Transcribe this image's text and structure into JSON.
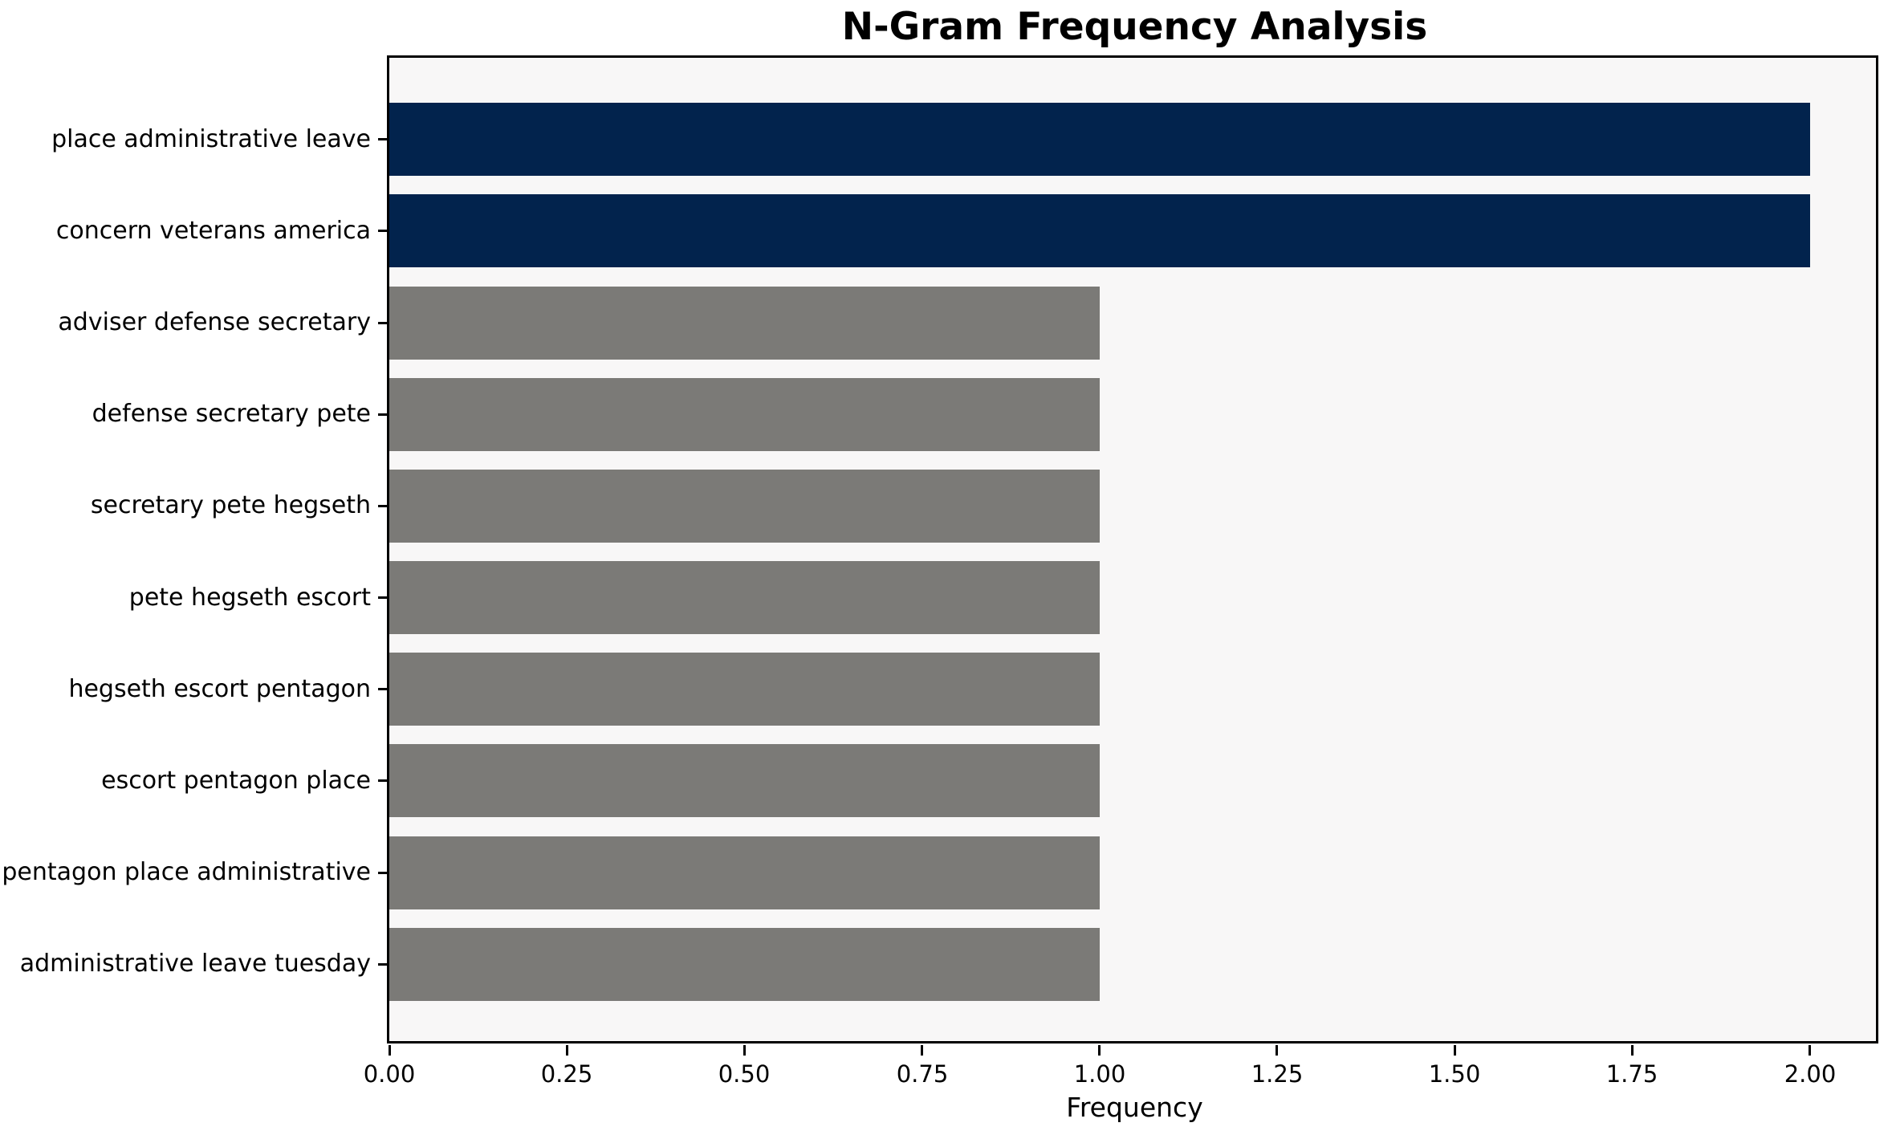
{
  "chart_data": {
    "type": "bar",
    "orientation": "horizontal",
    "title": "N-Gram Frequency Analysis",
    "xlabel": "Frequency",
    "ylabel": "",
    "categories": [
      "place administrative leave",
      "concern veterans america",
      "adviser defense secretary",
      "defense secretary pete",
      "secretary pete hegseth",
      "pete hegseth escort",
      "hegseth escort pentagon",
      "escort pentagon place",
      "pentagon place administrative",
      "administrative leave tuesday"
    ],
    "values": [
      2,
      2,
      1,
      1,
      1,
      1,
      1,
      1,
      1,
      1
    ],
    "bar_colors": [
      "#02234d",
      "#02234d",
      "#7b7a77",
      "#7b7a77",
      "#7b7a77",
      "#7b7a77",
      "#7b7a77",
      "#7b7a77",
      "#7b7a77",
      "#7b7a77"
    ],
    "xlim": [
      0,
      2.1
    ],
    "xticks": [
      {
        "value": 0.0,
        "label": "0.00"
      },
      {
        "value": 0.25,
        "label": "0.25"
      },
      {
        "value": 0.5,
        "label": "0.50"
      },
      {
        "value": 0.75,
        "label": "0.75"
      },
      {
        "value": 1.0,
        "label": "1.00"
      },
      {
        "value": 1.25,
        "label": "1.25"
      },
      {
        "value": 1.5,
        "label": "1.50"
      },
      {
        "value": 1.75,
        "label": "1.75"
      },
      {
        "value": 2.0,
        "label": "2.00"
      }
    ],
    "grid": false,
    "legend": null,
    "colors": {
      "highlight": "#02234d",
      "default": "#7b7a77",
      "plot_bg": "#f8f7f7",
      "figure_bg": "#ffffff",
      "spine": "#000000",
      "text": "#000000"
    }
  }
}
